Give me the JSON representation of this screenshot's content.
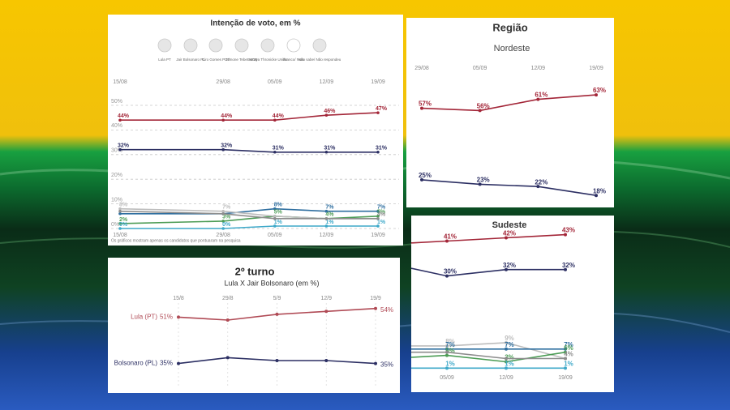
{
  "chart_data": [
    {
      "type": "line",
      "title": "Intenção de voto, em %",
      "categories": [
        "15/08",
        "29/08",
        "05/09",
        "12/09",
        "19/09"
      ],
      "series": [
        {
          "name": "Lula PT",
          "color": "#a32638",
          "values": [
            44,
            44,
            44,
            46,
            47
          ],
          "value_labels": [
            "44%",
            "44%",
            "44%",
            "46%",
            "47%"
          ]
        },
        {
          "name": "Jair Bolsonaro PL",
          "color": "#2c2f63",
          "values": [
            32,
            32,
            31,
            31,
            31
          ],
          "value_labels": [
            "32%",
            "32%",
            "31%",
            "31%",
            "31%"
          ]
        },
        {
          "name": "Ciro Gomes PDT",
          "color": "#2f6fa0",
          "values": [
            6,
            6,
            8,
            7,
            7
          ],
          "value_labels": [
            null,
            null,
            "8%",
            "7%",
            "7%"
          ]
        },
        {
          "name": "Simone Tebet MDB",
          "color": "#4c9c55",
          "values": [
            2,
            3,
            5,
            4,
            5
          ],
          "value_labels": [
            "2%",
            "3%",
            "5%",
            "4%",
            "5%"
          ]
        },
        {
          "name": "Soraya Thronicke União",
          "color": "#3fa9c9",
          "values": [
            0,
            0,
            1,
            1,
            1
          ],
          "value_labels": [
            "0%",
            "0%",
            "1%",
            "1%",
            "1%"
          ]
        },
        {
          "name": "Branco/ Nulo",
          "color": "#bdbdbd",
          "values": [
            8,
            7,
            5,
            4,
            4
          ],
          "value_labels": [
            "8%",
            "7%",
            null,
            null,
            null
          ]
        },
        {
          "name": "Não sabe/ Não respondeu",
          "color": "#8d8d8d",
          "values": [
            7,
            6,
            4,
            4,
            4
          ],
          "value_labels": [
            null,
            null,
            null,
            null,
            "4%"
          ]
        }
      ],
      "ylim": [
        0,
        55
      ],
      "yticks": [
        {
          "value": 0,
          "label": "0%"
        },
        {
          "value": 10,
          "label": "10%"
        },
        {
          "value": 20,
          "label": "20%"
        },
        {
          "value": 30,
          "label": "30%"
        },
        {
          "value": 40,
          "label": "40%"
        },
        {
          "value": 50,
          "label": "50%"
        }
      ],
      "grid": true,
      "note": "Os gráficos mostram apenas os candidatos que pontuaram na pesquisa"
    },
    {
      "type": "line",
      "title": "Região",
      "subtitle": "Nordeste",
      "categories": [
        "29/08",
        "05/09",
        "12/09",
        "19/09"
      ],
      "series": [
        {
          "name": "Lula",
          "color": "#a32638",
          "values": [
            57,
            56,
            61,
            63
          ],
          "value_labels": [
            "57%",
            "56%",
            "61%",
            "63%"
          ]
        },
        {
          "name": "Bolsonaro",
          "color": "#2c2f63",
          "values": [
            25,
            23,
            22,
            18
          ],
          "value_labels": [
            "25%",
            "23%",
            "22%",
            "18%"
          ]
        }
      ],
      "ylim": [
        13,
        71
      ]
    },
    {
      "type": "line",
      "title": "Sudeste",
      "categories": [
        null,
        "05/09",
        "12/09",
        "19/09"
      ],
      "series": [
        {
          "name": "Lula",
          "color": "#a32638",
          "values": [
            40,
            41,
            42,
            43
          ],
          "value_labels": [
            null,
            "41%",
            "42%",
            "43%"
          ]
        },
        {
          "name": "Bolsonaro",
          "color": "#2c2f63",
          "values": [
            34,
            30,
            32,
            32
          ],
          "value_labels": [
            null,
            "30%",
            "32%",
            "32%"
          ]
        },
        {
          "name": "Branco/ Nulo",
          "color": "#bdbdbd",
          "values": [
            8,
            8,
            9,
            4
          ],
          "value_labels": [
            null,
            "8%",
            "9%",
            null
          ]
        },
        {
          "name": "Ciro Gomes",
          "color": "#2f6fa0",
          "values": [
            7,
            7,
            7,
            7
          ],
          "value_labels": [
            null,
            "7%",
            "7%",
            "7%"
          ]
        },
        {
          "name": "Simone Tebet",
          "color": "#4c9c55",
          "values": [
            4,
            5,
            3,
            6
          ],
          "value_labels": [
            null,
            "5%",
            "3%",
            "6%"
          ]
        },
        {
          "name": "Não sabe",
          "color": "#8d8d8d",
          "values": [
            6,
            6,
            4,
            4
          ],
          "value_labels": [
            null,
            null,
            null,
            "4%"
          ]
        },
        {
          "name": "Soraya Thronicke",
          "color": "#3fa9c9",
          "values": [
            1,
            1,
            1,
            1
          ],
          "value_labels": [
            null,
            "1%",
            "1%",
            "1%"
          ]
        }
      ],
      "ylim": [
        -3,
        48
      ]
    },
    {
      "type": "line",
      "title": "2º turno",
      "subtitle": "Lula X Jair Bolsonaro (em %)",
      "categories": [
        "15/8",
        "29/8",
        "5/9",
        "12/9",
        "19/9"
      ],
      "series": [
        {
          "name": "Lula (PT)",
          "color": "#b04a55",
          "values": [
            51,
            50,
            52,
            53,
            54
          ],
          "value_labels": [
            "51%",
            null,
            null,
            null,
            "54%"
          ]
        },
        {
          "name": "Bolsonaro (PL)",
          "color": "#2c2f63",
          "values": [
            35,
            37,
            36,
            36,
            35
          ],
          "value_labels": [
            "35%",
            null,
            null,
            null,
            "35%"
          ]
        }
      ],
      "ylim": [
        29,
        57
      ]
    }
  ]
}
